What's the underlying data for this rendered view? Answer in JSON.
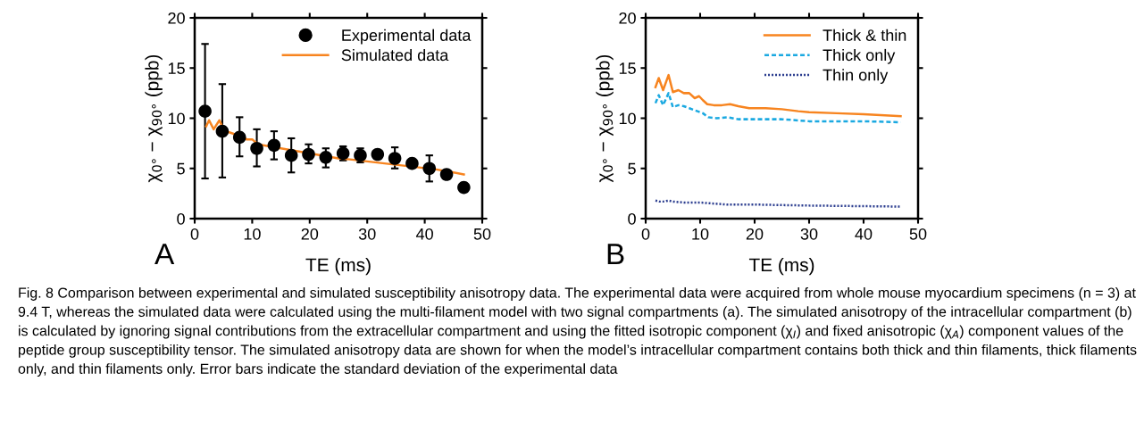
{
  "chart_data": [
    {
      "type": "line",
      "xlabel": "TE (ms)",
      "ylabel": "χ$_{0°}$ − χ$_{90°}$ (ppb)",
      "xlim": [
        0,
        50
      ],
      "ylim": [
        0,
        20
      ],
      "xticks": [
        0,
        10,
        20,
        30,
        40,
        50
      ],
      "yticks": [
        0,
        5,
        10,
        15,
        20
      ],
      "grid": false,
      "legend": "top right",
      "annotations": [
        "A",
        "Fig. 8 Comparison between experimental and simulated susceptibility anisotropy data. The experimental data were acquired from whole mouse myocardium specimens (n = 3) at 9.4 T, whereas the simulated data were calculated using the multi-filament model with two signal compartments (a). The simulated anisotropy of the intracellular compartment (b) is calculated by ignoring signal contributions from the extracellular compartment and using the fitted isotropic component (χ$_{I}$) and fixed anisotropic (χ$_{A}$) component values of the peptide group susceptibility tensor. The simulated anisotropy data are shown for when the model’s intracellular compartment contains both thick and thin filaments, thick filaments only, and thin filaments only. Error bars indicate the standard deviation of the experimental data"
      ],
      "series": [
        {
          "name": "Experimental data",
          "type": "scatter",
          "marker": "circle",
          "color": "#000000",
          "x": [
            1.8,
            4.8,
            7.8,
            10.8,
            13.8,
            16.8,
            19.8,
            22.8,
            25.8,
            28.8,
            31.8,
            34.8,
            37.8,
            40.8,
            43.8,
            46.8
          ],
          "values": [
            10.7,
            8.7,
            8.1,
            7.0,
            7.3,
            6.3,
            6.4,
            6.1,
            6.5,
            6.3,
            6.4,
            6.0,
            5.5,
            5.0,
            4.4,
            3.1
          ],
          "errors": [
            [
              4.0,
              17.4
            ],
            [
              4.1,
              13.4
            ],
            [
              6.2,
              10.1
            ],
            [
              5.2,
              8.9
            ],
            [
              5.9,
              8.7
            ],
            [
              4.6,
              8.0
            ],
            [
              5.5,
              7.4
            ],
            [
              5.1,
              7.0
            ],
            [
              5.8,
              7.2
            ],
            [
              5.6,
              7.0
            ],
            null,
            [
              5.0,
              7.1
            ],
            null,
            [
              3.7,
              6.3
            ],
            null,
            null
          ]
        },
        {
          "name": "Simulated data",
          "type": "line",
          "line_style": "solid",
          "color": "#f7841f",
          "x": [
            2,
            2.5,
            3.3,
            4.3,
            5,
            6,
            7,
            8,
            9,
            10,
            11,
            13,
            15,
            17,
            19,
            21,
            23,
            25,
            27,
            30,
            33,
            36,
            39,
            42,
            45,
            46.8
          ],
          "values": [
            9.2,
            9.8,
            8.9,
            9.8,
            8.9,
            8.6,
            8.4,
            8.3,
            7.9,
            7.9,
            7.4,
            7.2,
            7.0,
            6.8,
            6.6,
            6.4,
            6.2,
            6.0,
            5.9,
            5.7,
            5.5,
            5.3,
            5.1,
            4.9,
            4.6,
            4.4
          ]
        }
      ]
    },
    {
      "type": "line",
      "xlabel": "TE (ms)",
      "ylabel": "χ$_{0°}$ − χ$_{90°}$ (ppb)",
      "xlim": [
        0,
        50
      ],
      "ylim": [
        0,
        20
      ],
      "xticks": [
        0,
        10,
        20,
        30,
        40,
        50
      ],
      "yticks": [
        0,
        5,
        10,
        15,
        20
      ],
      "grid": false,
      "legend": "top right",
      "annotations": [
        "B"
      ],
      "series": [
        {
          "name": "Thick & thin",
          "line_style": "solid",
          "color": "#f7841f",
          "x": [
            1.8,
            2.4,
            3.2,
            4.2,
            5,
            6,
            7,
            8,
            9,
            9.8,
            10.5,
            11.3,
            12.5,
            14,
            15.5,
            17,
            19,
            22,
            25,
            28,
            30,
            35,
            40,
            46.8
          ],
          "values": [
            13.1,
            14.0,
            12.8,
            14.3,
            12.6,
            12.8,
            12.5,
            12.5,
            12.0,
            12.2,
            11.8,
            11.4,
            11.3,
            11.3,
            11.4,
            11.2,
            11.0,
            11.0,
            10.9,
            10.7,
            10.6,
            10.5,
            10.4,
            10.2
          ]
        },
        {
          "name": "Thick only",
          "line_style": "dashed",
          "color": "#1ba9e1",
          "x": [
            1.8,
            2.4,
            3.2,
            4.2,
            5,
            6,
            7,
            8,
            9.5,
            10.5,
            11.5,
            13,
            15,
            17,
            20,
            25,
            30,
            40,
            46.8
          ],
          "values": [
            11.5,
            12.3,
            11.3,
            12.5,
            11.1,
            11.3,
            11.2,
            11.0,
            10.7,
            10.5,
            10.1,
            10.0,
            10.1,
            9.9,
            9.9,
            9.9,
            9.7,
            9.7,
            9.6
          ]
        },
        {
          "name": "Thin only",
          "line_style": "dotted",
          "color": "#2b3d8f",
          "x": [
            1.8,
            2.5,
            3.2,
            4.2,
            5,
            7,
            10,
            15,
            20,
            30,
            46.8
          ],
          "values": [
            1.8,
            1.7,
            1.7,
            1.8,
            1.7,
            1.6,
            1.6,
            1.4,
            1.4,
            1.3,
            1.2
          ]
        }
      ]
    }
  ]
}
